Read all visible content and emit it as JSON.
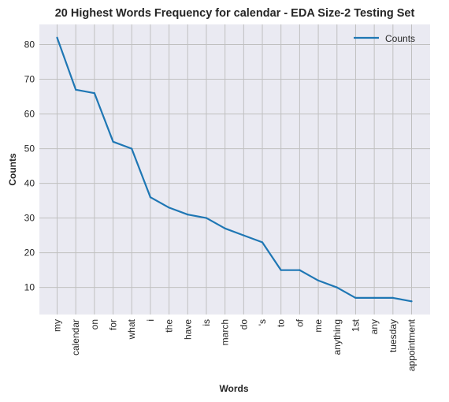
{
  "chart_data": {
    "type": "line",
    "title": "20 Highest Words Frequency for calendar - EDA Size-2 Testing Set",
    "xlabel": "Words",
    "ylabel": "Counts",
    "categories": [
      "my",
      "calendar",
      "on",
      "for",
      "what",
      "i",
      "the",
      "have",
      "is",
      "march",
      "do",
      "'s",
      "to",
      "of",
      "me",
      "anything",
      "1st",
      "any",
      "tuesday",
      "appointment"
    ],
    "series": [
      {
        "name": "Counts",
        "values": [
          82,
          67,
          66,
          52,
          50,
          36,
          33,
          31,
          30,
          27,
          25,
          23,
          15,
          15,
          12,
          10,
          7,
          7,
          7,
          6
        ]
      }
    ],
    "ylim": [
      2.2,
      85.8
    ],
    "yticks": [
      10,
      20,
      30,
      40,
      50,
      60,
      70,
      80
    ],
    "grid": true,
    "legend_position": "top-right",
    "line_color": "#1f77b4",
    "background_color": "#eaeaf2",
    "grid_color": "#c0c0c0"
  }
}
